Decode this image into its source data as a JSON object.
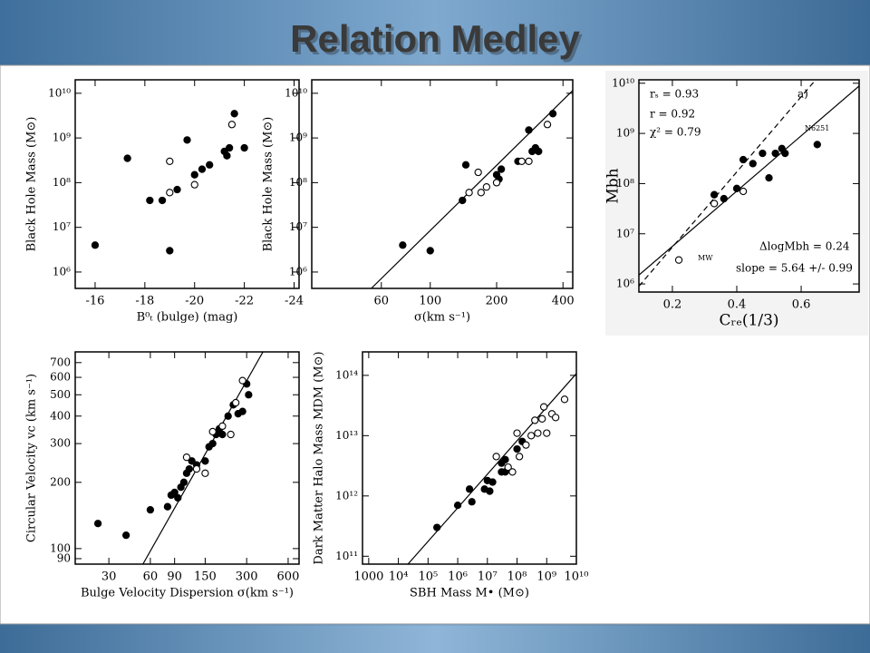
{
  "title": "Relation Medley",
  "chart_data": [
    {
      "type": "scatter",
      "xlabel": "B⁰ₜ (bulge) (mag)",
      "ylabel": "Black Hole Mass (M⊙)",
      "xlim": [
        -15.2,
        -24.2
      ],
      "xticks": [
        -16,
        -18,
        -20,
        -22,
        -24
      ],
      "ylim": [
        430000,
        20000000000
      ],
      "ylog": true,
      "yticks": [
        {
          "value": 1000000,
          "label": "10⁶"
        },
        {
          "value": 10000000,
          "label": "10⁷"
        },
        {
          "value": 100000000,
          "label": "10⁸"
        },
        {
          "value": 1000000000,
          "label": "10⁹"
        },
        {
          "value": 10000000000,
          "label": "10¹⁰"
        }
      ],
      "series": [
        {
          "marker": "filled",
          "color": "#000000",
          "x": [
            -16,
            -17.3,
            -18.2,
            -18.7,
            -19.3,
            -19,
            -19.7,
            -20,
            -20.3,
            -20.6,
            -21.2,
            -21.3,
            -21.6,
            -22,
            -21.4
          ],
          "values": [
            4000000,
            350000000,
            40000000,
            40000000,
            70000000,
            3000000,
            900000000,
            150000000,
            200000000,
            250000000,
            500000000,
            400000000,
            3500000000,
            600000000,
            600000000
          ]
        },
        {
          "marker": "open",
          "color": "#000000",
          "x": [
            -19,
            -19,
            -20,
            -21.5
          ],
          "values": [
            300000000,
            60000000,
            90000000,
            2000000000
          ]
        }
      ]
    },
    {
      "type": "scatter",
      "xlabel": "σ(km s⁻¹)",
      "ylabel": "Black Hole Mass (M⊙)",
      "xlim": [
        29,
        443
      ],
      "xlog": true,
      "xticks": [
        60,
        100,
        200,
        400
      ],
      "ylim": [
        430000,
        20000000000
      ],
      "ylog": true,
      "yticks": [
        {
          "value": 1000000,
          "label": "10⁶"
        },
        {
          "value": 10000000,
          "label": "10⁷"
        },
        {
          "value": 100000000,
          "label": "10⁸"
        },
        {
          "value": 1000000000,
          "label": "10⁹"
        },
        {
          "value": 10000000000,
          "label": "10¹⁰"
        }
      ],
      "series": [
        {
          "marker": "filled",
          "color": "#000000",
          "x": [
            75,
            100,
            145,
            140,
            200,
            210,
            205,
            250,
            280,
            290,
            300,
            310,
            360
          ],
          "values": [
            4000000,
            3000000,
            250000000,
            40000000,
            150000000,
            200000000,
            120000000,
            300000000,
            1500000000,
            500000000,
            600000000,
            500000000,
            3500000000
          ]
        },
        {
          "marker": "open",
          "color": "#000000",
          "x": [
            165,
            150,
            170,
            180,
            200,
            260,
            280,
            340
          ],
          "values": [
            170000000,
            60000000,
            60000000,
            80000000,
            100000000,
            300000000,
            300000000,
            2000000000
          ]
        }
      ],
      "fits": [
        {
          "x": [
            54,
            443
          ],
          "y": [
            430000,
            11500000000
          ]
        }
      ]
    },
    {
      "type": "scatter",
      "xlabel": "Cᵣₑ(1/3)",
      "ylabel": "Mbh",
      "xlim": [
        0.096,
        0.78
      ],
      "xticks": [
        0.2,
        0.4,
        0.6
      ],
      "ylim": [
        690000,
        11700000000
      ],
      "ylog": true,
      "yticks": [
        {
          "value": 1000000,
          "label": "10⁶"
        },
        {
          "value": 10000000,
          "label": "10⁷"
        },
        {
          "value": 100000000,
          "label": "10⁸"
        },
        {
          "value": 1000000000,
          "label": "10⁹"
        },
        {
          "value": 10000000000,
          "label": "10¹⁰"
        }
      ],
      "annotations": [
        "rₛ = 0.93",
        "r = 0.92",
        "χ² = 0.79",
        "a)",
        "N6251",
        "MW",
        "ΔlogMbh = 0.24",
        "slope = 5.64 +/- 0.99"
      ],
      "series": [
        {
          "marker": "filled",
          "color": "#000000",
          "x": [
            0.33,
            0.36,
            0.4,
            0.42,
            0.45,
            0.48,
            0.5,
            0.52,
            0.54,
            0.55,
            0.65
          ],
          "values": [
            60000000,
            50000000,
            80000000,
            300000000,
            250000000,
            400000000,
            130000000,
            400000000,
            500000000,
            400000000,
            600000000
          ]
        },
        {
          "marker": "open",
          "color": "#000000",
          "x": [
            0.22,
            0.33,
            0.42
          ],
          "values": [
            3000000,
            40000000,
            70000000
          ]
        }
      ],
      "fits": [
        {
          "x": [
            0.096,
            0.78
          ],
          "y": [
            1500000,
            8800000000
          ]
        },
        {
          "x": [
            0.096,
            0.645
          ],
          "y": [
            900000,
            11700000000
          ],
          "dash": true
        }
      ]
    },
    {
      "type": "scatter",
      "xlabel": "Bulge Velocity Dispersion σ(km s⁻¹)",
      "ylabel": "Circular Velocity vc (km s⁻¹)",
      "xlim": [
        17.1,
        720
      ],
      "xlog": true,
      "xticks": [
        30,
        60,
        90,
        150,
        300,
        600
      ],
      "ylim": [
        85,
        783
      ],
      "ylog": true,
      "yticks": [
        90,
        100,
        200,
        300,
        400,
        500,
        600,
        700
      ],
      "series": [
        {
          "marker": "filled",
          "color": "#000000",
          "x": [
            25,
            40,
            60,
            80,
            85,
            90,
            95,
            100,
            105,
            110,
            115,
            120,
            130,
            150,
            160,
            170,
            180,
            190,
            200,
            220,
            240,
            260,
            280,
            300,
            310
          ],
          "values": [
            130,
            115,
            150,
            155,
            175,
            180,
            170,
            190,
            200,
            220,
            230,
            250,
            240,
            250,
            290,
            300,
            330,
            350,
            330,
            400,
            450,
            410,
            420,
            560,
            500
          ]
        },
        {
          "marker": "open",
          "color": "#000000",
          "x": [
            110,
            130,
            150,
            170,
            200,
            230,
            250,
            280
          ],
          "values": [
            260,
            230,
            220,
            340,
            360,
            330,
            460,
            580
          ]
        }
      ],
      "fits": [
        {
          "x": [
            53,
            394
          ],
          "y": [
            85,
            783
          ]
        }
      ]
    },
    {
      "type": "scatter",
      "xlabel": "SBH Mass M• (M⊙)",
      "ylabel": "Dark Matter Halo Mass MDM (M⊙)",
      "xlim": [
        617,
        10000000000
      ],
      "xlog": true,
      "xticks": [
        1000,
        {
          "value": 10000,
          "label": "10⁴"
        },
        {
          "value": 100000,
          "label": "10⁵"
        },
        {
          "value": 1000000,
          "label": "10⁶"
        },
        {
          "value": 10000000,
          "label": "10⁷"
        },
        {
          "value": 100000000,
          "label": "10⁸"
        },
        {
          "value": 1000000000,
          "label": "10⁹"
        },
        {
          "value": 10000000000,
          "label": "10¹⁰"
        }
      ],
      "ylim": [
        74000000000,
        245000000000000
      ],
      "ylog": true,
      "yticks": [
        {
          "value": 100000000000,
          "label": "10¹¹"
        },
        {
          "value": 1000000000000,
          "label": "10¹²"
        },
        {
          "value": 10000000000000,
          "label": "10¹³"
        },
        {
          "value": 100000000000000,
          "label": "10¹⁴"
        }
      ],
      "series": [
        {
          "marker": "filled",
          "color": "#000000",
          "x": [
            200000,
            1000000,
            2500000,
            3000000,
            8000000,
            10000000,
            12000000,
            15000000,
            30000000,
            30000000,
            40000000,
            40000000,
            100000000,
            150000000
          ],
          "values": [
            300000000000,
            700000000000,
            1300000000000,
            800000000000,
            1300000000000,
            1800000000000,
            1200000000000,
            1700000000000,
            2500000000000,
            3500000000000,
            4000000000000,
            2500000000000,
            6000000000000,
            8000000000000
          ]
        },
        {
          "marker": "open",
          "color": "#000000",
          "x": [
            20000000,
            50000000,
            70000000,
            100000000,
            120000000,
            200000000,
            300000000,
            400000000,
            500000000,
            700000000,
            800000000,
            1000000000,
            1500000000,
            2000000000,
            4000000000
          ],
          "values": [
            4500000000000,
            3000000000000,
            2500000000000,
            11000000000000,
            4500000000000,
            7000000000000,
            10000000000000,
            18000000000000,
            11000000000000,
            19000000000000,
            30000000000000,
            11000000000000,
            23000000000000,
            20000000000000,
            40000000000000
          ]
        }
      ],
      "fits": [
        {
          "x": [
            21000,
            10000000000
          ],
          "y": [
            74000000000,
            107000000000000
          ]
        }
      ]
    }
  ]
}
